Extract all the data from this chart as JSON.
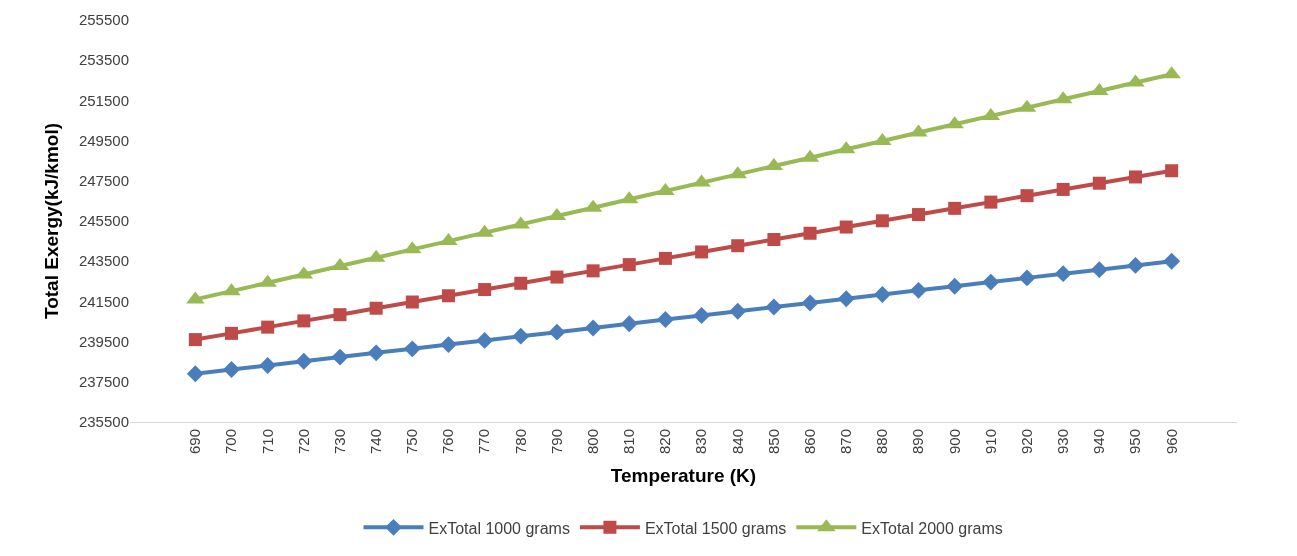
{
  "chart_data": {
    "type": "line",
    "xlabel": "Temperature (K)",
    "ylabel": "Total Exergy(kJ/kmol)",
    "categories": [
      "690",
      "700",
      "710",
      "720",
      "730",
      "740",
      "750",
      "760",
      "770",
      "780",
      "790",
      "800",
      "810",
      "820",
      "830",
      "840",
      "850",
      "860",
      "870",
      "880",
      "890",
      "900",
      "910",
      "920",
      "930",
      "940",
      "950",
      "960"
    ],
    "series": [
      {
        "name": "ExTotal 1000 grams",
        "color": "#4a7ebb",
        "marker": "diamond",
        "values": [
          237900,
          238110,
          238310,
          238520,
          238730,
          238940,
          239140,
          239350,
          239560,
          239770,
          239970,
          240180,
          240390,
          240600,
          240800,
          241010,
          241220,
          241420,
          241630,
          241840,
          242050,
          242250,
          242460,
          242670,
          242880,
          243080,
          243290,
          243500
        ]
      },
      {
        "name": "ExTotal 1500 grams",
        "color": "#be4b48",
        "marker": "square",
        "values": [
          239600,
          239910,
          240220,
          240530,
          240840,
          241160,
          241470,
          241780,
          242090,
          242400,
          242710,
          243020,
          243330,
          243640,
          243960,
          244270,
          244580,
          244890,
          245200,
          245510,
          245820,
          246130,
          246440,
          246760,
          247070,
          247380,
          247690,
          248000
        ]
      },
      {
        "name": "ExTotal 2000 grams",
        "color": "#98b954",
        "marker": "triangle",
        "values": [
          241600,
          242010,
          242430,
          242840,
          243260,
          243670,
          244090,
          244500,
          244920,
          245330,
          245750,
          246160,
          246580,
          246990,
          247410,
          247820,
          248240,
          248650,
          249070,
          249480,
          249900,
          250310,
          250730,
          251140,
          251560,
          251970,
          252390,
          252800
        ]
      }
    ],
    "ylim": [
      235500,
      255500
    ],
    "yticks": [
      235500,
      237500,
      239500,
      241500,
      243500,
      245500,
      247500,
      249500,
      251500,
      253500,
      255500
    ],
    "legend": "bottom",
    "line_style": "solid"
  }
}
